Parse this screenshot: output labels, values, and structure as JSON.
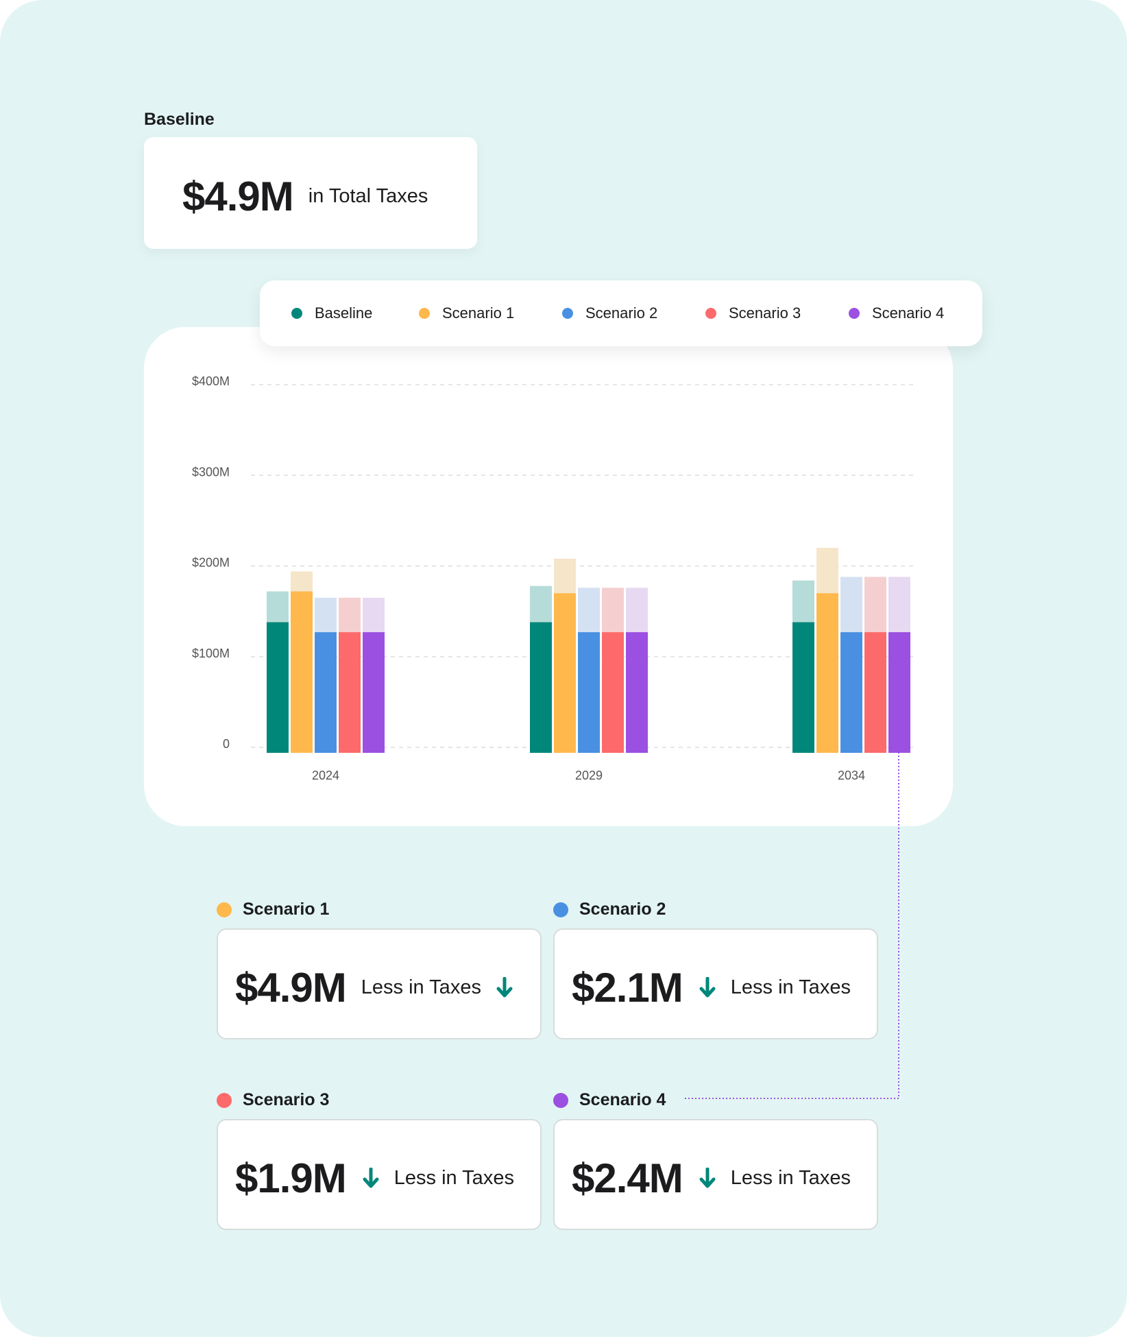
{
  "baseline": {
    "label": "Baseline",
    "amount": "$4.9M",
    "caption": "in Total Taxes"
  },
  "chart_data": {
    "type": "bar",
    "categories": [
      "2024",
      "2029",
      "2034"
    ],
    "y_ticks": [
      "0",
      "$100M",
      "$200M",
      "$300M",
      "$400M"
    ],
    "ylim": [
      0,
      400
    ],
    "unit": "$M",
    "grid": true,
    "legend": "top",
    "series": [
      {
        "name": "Baseline",
        "color": "#01877a",
        "light": "#b5dcd8",
        "base": [
          138,
          138,
          138
        ],
        "total": [
          172,
          178,
          184
        ]
      },
      {
        "name": "Scenario 1",
        "color": "#feb84c",
        "light": "#f5e5c9",
        "base": [
          172,
          170,
          170
        ],
        "total": [
          194,
          208,
          220
        ]
      },
      {
        "name": "Scenario 2",
        "color": "#4a90e2",
        "light": "#d4e1f2",
        "base": [
          127,
          127,
          127
        ],
        "total": [
          165,
          176,
          188
        ]
      },
      {
        "name": "Scenario 3",
        "color": "#fd6a6b",
        "light": "#f5cfd0",
        "base": [
          127,
          127,
          127
        ],
        "total": [
          165,
          176,
          188
        ]
      },
      {
        "name": "Scenario 4",
        "color": "#9b50e1",
        "light": "#e7d9f1",
        "base": [
          127,
          127,
          127
        ],
        "total": [
          165,
          176,
          188
        ]
      }
    ]
  },
  "scenarios": [
    {
      "name": "Scenario 1",
      "color": "#feb84c",
      "amount": "$4.9M",
      "caption": "Less in Taxes"
    },
    {
      "name": "Scenario 2",
      "color": "#4a90e2",
      "amount": "$2.1M",
      "caption": "Less in Taxes"
    },
    {
      "name": "Scenario 3",
      "color": "#fd6a6b",
      "amount": "$1.9M",
      "caption": "Less in Taxes"
    },
    {
      "name": "Scenario 4",
      "color": "#9b50e1",
      "amount": "$2.4M",
      "caption": "Less in Taxes"
    }
  ],
  "icons": {
    "down": "arrow-down-icon"
  },
  "colors": {
    "background": "#e2f5f4",
    "arrow": "#01877a",
    "connector": "#9b50e1"
  }
}
